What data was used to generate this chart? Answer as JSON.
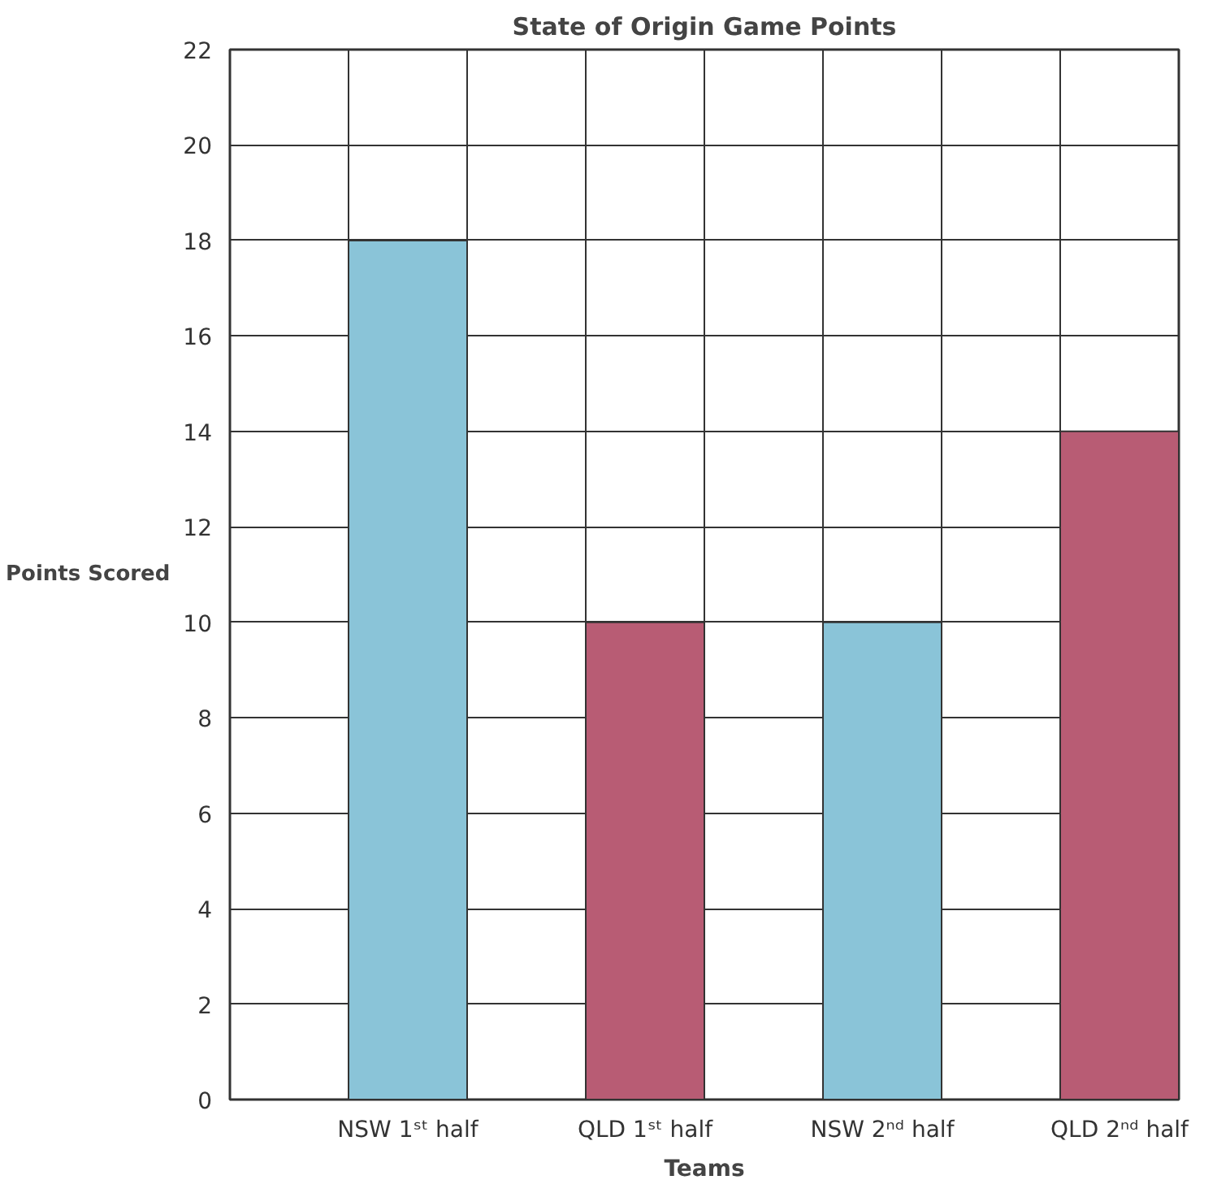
{
  "chart_data": {
    "type": "bar",
    "title": "State of Origin Game Points",
    "xlabel": "Teams",
    "ylabel": "Points Scored",
    "categories": [
      "NSW 1ˢᵗ half",
      "QLD 1ˢᵗ half",
      "NSW 2ⁿᵈ half",
      "QLD 2ⁿᵈ half"
    ],
    "values": [
      18,
      10,
      10,
      14
    ],
    "colors": [
      "#8ac4d8",
      "#b85c74",
      "#8ac4d8",
      "#b85c74"
    ],
    "ylim": [
      0,
      22
    ],
    "yticks": [
      0,
      2,
      4,
      6,
      8,
      10,
      12,
      14,
      16,
      18,
      20,
      22
    ],
    "grid": true
  }
}
